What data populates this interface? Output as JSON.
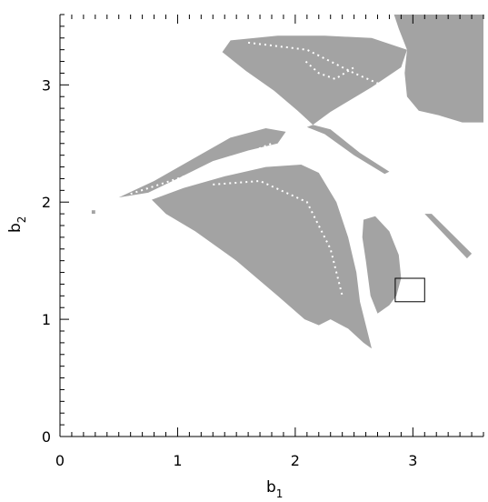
{
  "chart_data": {
    "type": "scatter",
    "xlabel": "b",
    "xlabel_subscript": "1",
    "ylabel": "b",
    "ylabel_subscript": "2",
    "xlim": [
      0,
      3.6
    ],
    "ylim": [
      0,
      3.6
    ],
    "x_ticks": [
      0,
      1,
      2,
      3
    ],
    "y_ticks": [
      0,
      1,
      2,
      3
    ],
    "x_tick_labels": [
      "0",
      "1",
      "2",
      "3"
    ],
    "y_tick_labels": [
      "0",
      "1",
      "2",
      "3"
    ],
    "minor_tick_step": 0.1,
    "grid": false,
    "fill_color": "#a3a3a3",
    "regions": [
      {
        "name": "upper-left-lobe",
        "points": [
          [
            1.45,
            3.38
          ],
          [
            1.85,
            3.42
          ],
          [
            2.25,
            3.42
          ],
          [
            2.65,
            3.4
          ],
          [
            2.95,
            3.3
          ],
          [
            2.9,
            3.15
          ],
          [
            2.65,
            2.98
          ],
          [
            2.3,
            2.77
          ],
          [
            2.15,
            2.66
          ],
          [
            2.02,
            2.78
          ],
          [
            1.82,
            2.95
          ],
          [
            1.58,
            3.12
          ],
          [
            1.38,
            3.28
          ]
        ]
      },
      {
        "name": "upper-right-block",
        "points": [
          [
            2.84,
            3.6
          ],
          [
            3.6,
            3.6
          ],
          [
            3.6,
            2.68
          ],
          [
            3.42,
            2.68
          ],
          [
            3.22,
            2.74
          ],
          [
            3.05,
            2.78
          ],
          [
            2.95,
            2.9
          ],
          [
            2.93,
            3.1
          ],
          [
            2.95,
            3.3
          ],
          [
            2.88,
            3.48
          ]
        ]
      },
      {
        "name": "upper-bridge-strip",
        "points": [
          [
            2.15,
            2.66
          ],
          [
            2.3,
            2.62
          ],
          [
            2.55,
            2.42
          ],
          [
            2.8,
            2.26
          ],
          [
            2.76,
            2.24
          ],
          [
            2.5,
            2.4
          ],
          [
            2.25,
            2.58
          ],
          [
            2.1,
            2.64
          ]
        ]
      },
      {
        "name": "mid-left-lobe",
        "points": [
          [
            0.5,
            2.04
          ],
          [
            0.8,
            2.18
          ],
          [
            1.15,
            2.38
          ],
          [
            1.45,
            2.55
          ],
          [
            1.75,
            2.63
          ],
          [
            1.92,
            2.6
          ],
          [
            1.85,
            2.5
          ],
          [
            1.6,
            2.44
          ],
          [
            1.3,
            2.35
          ],
          [
            1.0,
            2.2
          ],
          [
            0.75,
            2.08
          ]
        ]
      },
      {
        "name": "main-lobe",
        "points": [
          [
            0.78,
            2.02
          ],
          [
            1.05,
            2.12
          ],
          [
            1.4,
            2.22
          ],
          [
            1.75,
            2.3
          ],
          [
            2.05,
            2.32
          ],
          [
            2.2,
            2.25
          ],
          [
            2.35,
            2.0
          ],
          [
            2.45,
            1.7
          ],
          [
            2.52,
            1.4
          ],
          [
            2.55,
            1.15
          ],
          [
            2.6,
            0.95
          ],
          [
            2.65,
            0.75
          ],
          [
            2.58,
            0.8
          ],
          [
            2.45,
            0.92
          ],
          [
            2.3,
            1.0
          ],
          [
            2.2,
            0.95
          ],
          [
            2.08,
            1.0
          ],
          [
            1.85,
            1.2
          ],
          [
            1.5,
            1.5
          ],
          [
            1.15,
            1.75
          ],
          [
            0.9,
            1.9
          ]
        ]
      },
      {
        "name": "small-lobe",
        "points": [
          [
            2.58,
            1.85
          ],
          [
            2.68,
            1.88
          ],
          [
            2.8,
            1.75
          ],
          [
            2.88,
            1.55
          ],
          [
            2.9,
            1.35
          ],
          [
            2.86,
            1.2
          ],
          [
            2.8,
            1.12
          ],
          [
            2.7,
            1.05
          ],
          [
            2.64,
            1.2
          ],
          [
            2.6,
            1.5
          ],
          [
            2.57,
            1.7
          ]
        ]
      },
      {
        "name": "right-streak",
        "points": [
          [
            3.1,
            1.9
          ],
          [
            3.16,
            1.9
          ],
          [
            3.5,
            1.56
          ],
          [
            3.46,
            1.52
          ]
        ]
      },
      {
        "name": "left-dot",
        "points": [
          [
            0.27,
            1.93
          ],
          [
            0.3,
            1.93
          ],
          [
            0.3,
            1.9
          ],
          [
            0.27,
            1.9
          ]
        ]
      }
    ],
    "white_streaks": [
      {
        "points": [
          [
            1.6,
            3.36
          ],
          [
            2.1,
            3.3
          ],
          [
            2.5,
            3.1
          ],
          [
            2.85,
            2.95
          ]
        ]
      },
      {
        "points": [
          [
            0.6,
            2.07
          ],
          [
            1.0,
            2.2
          ],
          [
            1.45,
            2.36
          ],
          [
            1.8,
            2.5
          ]
        ]
      },
      {
        "points": [
          [
            1.3,
            2.15
          ],
          [
            1.7,
            2.18
          ],
          [
            2.1,
            2.0
          ],
          [
            2.3,
            1.6
          ],
          [
            2.4,
            1.2
          ]
        ]
      },
      {
        "points": [
          [
            2.09,
            3.2
          ],
          [
            2.2,
            3.1
          ],
          [
            2.34,
            3.05
          ],
          [
            2.5,
            3.15
          ]
        ]
      }
    ],
    "annotation_box": {
      "x0": 2.85,
      "x1": 3.1,
      "y0": 1.15,
      "y1": 1.35
    }
  }
}
